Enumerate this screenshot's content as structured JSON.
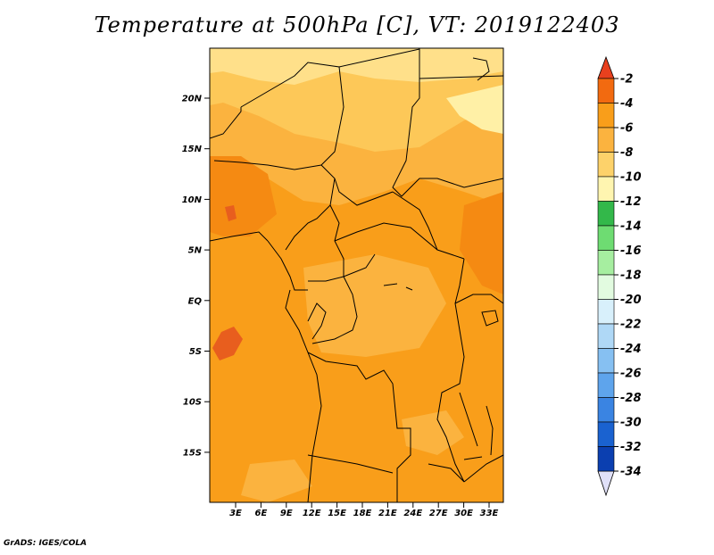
{
  "title": "Temperature at 500hPa [C], VT: 2019122403",
  "credit": "GrADS: IGES/COLA",
  "map": {
    "lat_labels": [
      "20N",
      "15N",
      "10N",
      "5N",
      "EQ",
      "5S",
      "10S",
      "15S"
    ],
    "lon_labels": [
      "3E",
      "6E",
      "9E",
      "12E",
      "15E",
      "18E",
      "21E",
      "24E",
      "27E",
      "30E",
      "33E"
    ],
    "field_colors": {
      "pale_yellow": "#fff0a6",
      "light_orange": "#fdc858",
      "orange_light": "#fbb33f",
      "orange": "#f99e1a",
      "dark_orange": "#f57b14",
      "red_orange": "#e85e1e"
    }
  },
  "colorbar": {
    "levels": [
      "-2",
      "-4",
      "-6",
      "-8",
      "-10",
      "-12",
      "-14",
      "-16",
      "-18",
      "-20",
      "-22",
      "-24",
      "-26",
      "-28",
      "-30",
      "-32",
      "-34"
    ],
    "top_triangle_color": "#e8401e",
    "bottom_triangle_color": "#e0e0f8",
    "colors": [
      "#f26a10",
      "#f99e1a",
      "#fbb33f",
      "#fdd26a",
      "#fff5b0",
      "#33b84a",
      "#6edc72",
      "#a6eea0",
      "#e2fbe0",
      "#d8f0fb",
      "#afd8f6",
      "#86c0f2",
      "#5ea4ec",
      "#3a84e2",
      "#1a62d0",
      "#0b3fb0",
      "#0a1a7a"
    ]
  }
}
